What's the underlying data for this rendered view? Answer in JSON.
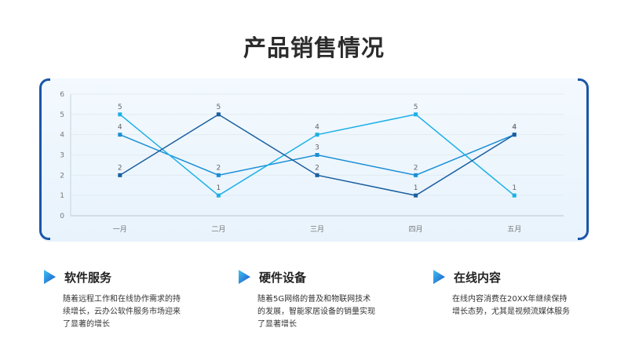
{
  "page": {
    "title": "产品销售情况"
  },
  "colors": {
    "series1": "#1a8fd6",
    "series2": "#1cb0e6",
    "series3": "#1a5fa0",
    "frame": "#1a56a8"
  },
  "chart_data": {
    "type": "line",
    "categories": [
      "一月",
      "二月",
      "三月",
      "四月",
      "五月"
    ],
    "ylim": [
      0,
      6
    ],
    "yticks": [
      0,
      1,
      2,
      3,
      4,
      5,
      6
    ],
    "grid": true,
    "legend": "none",
    "series": [
      {
        "values": [
          4,
          2,
          3,
          2,
          4
        ]
      },
      {
        "values": [
          5,
          1,
          4,
          5,
          1
        ]
      },
      {
        "values": [
          2,
          5,
          2,
          1,
          4
        ]
      }
    ]
  },
  "cards": [
    {
      "title": "软件服务",
      "body": "随着远程工作和在线协作需求的持续增长，云办公软件服务市场迎来了显著的增长",
      "icon": "play-triangle-icon"
    },
    {
      "title": "硬件设备",
      "body": "随着5G网络的普及和物联网技术的发展，智能家居设备的销量实现了显著增长",
      "icon": "play-triangle-icon"
    },
    {
      "title": "在线内容",
      "body": "在线内容消费在20XX年继续保持增长态势，尤其是视频流媒体服务",
      "icon": "play-triangle-icon"
    }
  ]
}
